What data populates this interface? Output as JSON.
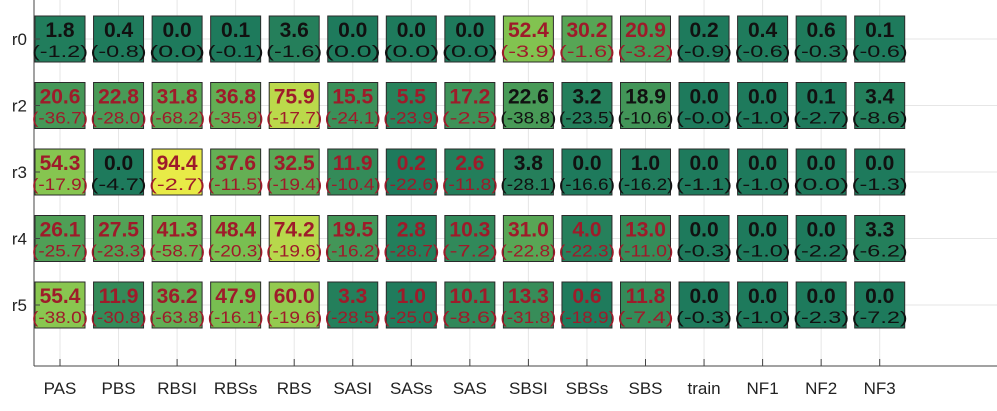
{
  "chart_data": {
    "type": "heatmap",
    "title": "",
    "xlabel": "",
    "ylabel": "",
    "columns": [
      "PAS",
      "PBS",
      "RBSI",
      "RBSs",
      "RBS",
      "SASI",
      "SASs",
      "SAS",
      "SBSI",
      "SBSs",
      "SBS",
      "train",
      "NF1",
      "NF2",
      "NF3"
    ],
    "rows": [
      "r0",
      "r2",
      "r3",
      "r4",
      "r5"
    ],
    "cells": [
      {
        "row": "r0",
        "values": [
          "1.8",
          "0.4",
          "0.0",
          "0.1",
          "3.6",
          "0.0",
          "0.0",
          "0.0",
          "52.4",
          "30.2",
          "20.9",
          "0.2",
          "0.4",
          "0.6",
          "0.1"
        ],
        "deltas": [
          "(-1.2)",
          "(-0.8)",
          "(0.0)",
          "(-0.1)",
          "(-1.6)",
          "(0.0)",
          "(0.0)",
          "(0.0)",
          "(-3.9)",
          "(-1.6)",
          "(-3.2)",
          "(-0.9)",
          "(-0.6)",
          "(-0.3)",
          "(-0.6)"
        ]
      },
      {
        "row": "r2",
        "values": [
          "20.6",
          "22.8",
          "31.8",
          "36.8",
          "75.9",
          "15.5",
          "5.5",
          "17.2",
          "22.6",
          "3.2",
          "18.9",
          "0.0",
          "0.0",
          "0.1",
          "3.4"
        ],
        "deltas": [
          "(-36.7)",
          "(-28.0)",
          "(-68.2)",
          "(-35.9)",
          "(-17.7)",
          "(-24.1)",
          "(-23.9)",
          "(-2.5)",
          "(-38.8)",
          "(-23.5)",
          "(-10.6)",
          "(-0.0)",
          "(-1.0)",
          "(-2.7)",
          "(-8.6)"
        ]
      },
      {
        "row": "r3",
        "values": [
          "54.3",
          "0.0",
          "94.4",
          "37.6",
          "32.5",
          "11.9",
          "0.2",
          "2.6",
          "3.8",
          "0.0",
          "1.0",
          "0.0",
          "0.0",
          "0.0",
          "0.0"
        ],
        "deltas": [
          "(-17.9)",
          "(-4.7)",
          "(-2.7)",
          "(-11.5)",
          "(-19.4)",
          "(-10.4)",
          "(-22.6)",
          "(-11.8)",
          "(-28.1)",
          "(-16.6)",
          "(-16.2)",
          "(-1.1)",
          "(-1.0)",
          "(0.0)",
          "(-1.3)"
        ]
      },
      {
        "row": "r4",
        "values": [
          "26.1",
          "27.5",
          "41.3",
          "48.4",
          "74.2",
          "19.5",
          "2.8",
          "10.3",
          "31.0",
          "4.0",
          "13.0",
          "0.0",
          "0.0",
          "0.0",
          "3.3"
        ],
        "deltas": [
          "(-25.7)",
          "(-23.3)",
          "(-58.7)",
          "(-20.3)",
          "(-19.6)",
          "(-16.2)",
          "(-28.7)",
          "(-7.2)",
          "(-22.8)",
          "(-22.3)",
          "(-11.0)",
          "(-0.3)",
          "(-1.0)",
          "(-2.2)",
          "(-6.2)"
        ]
      },
      {
        "row": "r5",
        "values": [
          "55.4",
          "11.9",
          "36.2",
          "47.9",
          "60.0",
          "3.3",
          "1.0",
          "10.1",
          "13.3",
          "0.6",
          "11.8",
          "0.0",
          "0.0",
          "0.0",
          "0.0"
        ],
        "deltas": [
          "(-38.0)",
          "(-30.8)",
          "(-63.8)",
          "(-16.1)",
          "(-19.6)",
          "(-28.5)",
          "(-25.0)",
          "(-8.6)",
          "(-31.8)",
          "(-18.9)",
          "(-7.4)",
          "(-0.3)",
          "(-1.0)",
          "(-2.3)",
          "(-7.2)"
        ]
      }
    ],
    "text_color_groups": {
      "r0": [
        "black",
        "black",
        "black",
        "black",
        "black",
        "black",
        "black",
        "black",
        "red",
        "red",
        "red",
        "black",
        "black",
        "black",
        "black"
      ],
      "r2": [
        "red",
        "red",
        "red",
        "red",
        "red",
        "red",
        "red",
        "red",
        "black",
        "black",
        "black",
        "black",
        "black",
        "black",
        "black"
      ],
      "r3": [
        "red",
        "black",
        "red",
        "red",
        "red",
        "red",
        "red",
        "red",
        "black",
        "black",
        "black",
        "black",
        "black",
        "black",
        "black"
      ],
      "r4": [
        "red",
        "red",
        "red",
        "red",
        "red",
        "red",
        "red",
        "red",
        "red",
        "red",
        "red",
        "black",
        "black",
        "black",
        "black"
      ],
      "r5": [
        "red",
        "red",
        "red",
        "red",
        "red",
        "red",
        "red",
        "red",
        "red",
        "red",
        "red",
        "black",
        "black",
        "black",
        "black"
      ]
    },
    "colormap": {
      "low": "#1e7a5c",
      "mid": "#7cc151",
      "high": "#f6f046",
      "text_red": "#9e1b2a",
      "text_black": "#111111",
      "cell_border": "#2a2a2a"
    },
    "value_range": [
      0,
      100
    ],
    "grid": true,
    "legend": "none"
  }
}
